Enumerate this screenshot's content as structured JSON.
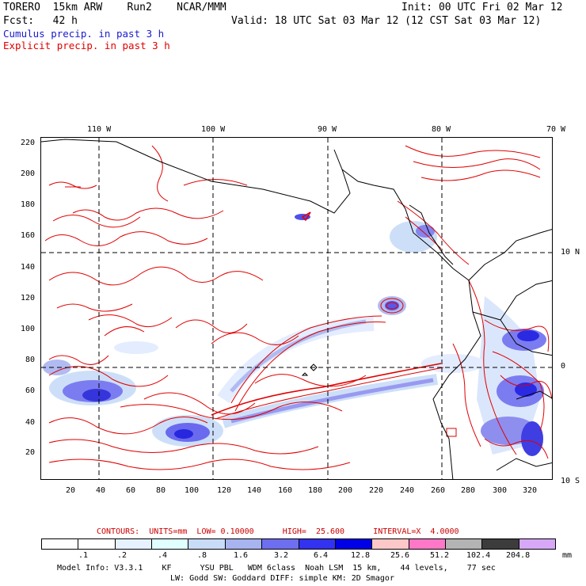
{
  "header": {
    "model": "TORERO  15km ARW    Run2    NCAR/MMM",
    "init": "Init: 00 UTC Fri 02 Mar 12",
    "fcst": "Fcst:   42 h",
    "valid": "Valid: 18 UTC Sat 03 Mar 12 (12 CST Sat 03 Mar 12)",
    "cumulus": "Cumulus precip. in past 3 h",
    "explicit": "Explicit precip. in past 3 h",
    "cumulus_color": "#1a1acc",
    "explicit_color": "#e00000"
  },
  "lon_labels": [
    "110 W",
    "100 W",
    "90 W",
    "80 W",
    "70 W"
  ],
  "lat_labels": [
    "10 N",
    "0",
    "10 S"
  ],
  "y_ticks": [
    "220",
    "200",
    "180",
    "160",
    "140",
    "120",
    "100",
    "80",
    "60",
    "40",
    "20"
  ],
  "x_ticks": [
    "20",
    "40",
    "60",
    "80",
    "100",
    "120",
    "140",
    "160",
    "180",
    "200",
    "220",
    "240",
    "260",
    "280",
    "300",
    "320"
  ],
  "contours": {
    "label": "CONTOURS:  UNITS=mm  LOW= 0.10000      HIGH=  25.600      INTERVAL=X  4.0000",
    "color": "#cc0000"
  },
  "colorbar": {
    "labels": [
      ".1",
      ".2",
      ".4",
      ".8",
      "1.6",
      "3.2",
      "6.4",
      "12.8",
      "25.6",
      "51.2",
      "102.4",
      "204.8"
    ],
    "unit": "mm",
    "colors": [
      "#ffffff",
      "#ffffff",
      "#e6f2ff",
      "#e0ffff",
      "#c8dcf8",
      "#a8b4f0",
      "#6e6ef0",
      "#3232f0",
      "#0000e6",
      "#ffc8c8",
      "#ff78c8",
      "#b4b4b4",
      "#3c3c3c",
      "#d8a8f8"
    ]
  },
  "footer": {
    "line1": "Model Info: V3.3.1    KF      YSU PBL   WDM 6class  Noah LSM  15 km,    44 levels,    77 sec",
    "line2": "LW: Godd SW: Goddard DIFF: simple KM: 2D Smagor"
  }
}
